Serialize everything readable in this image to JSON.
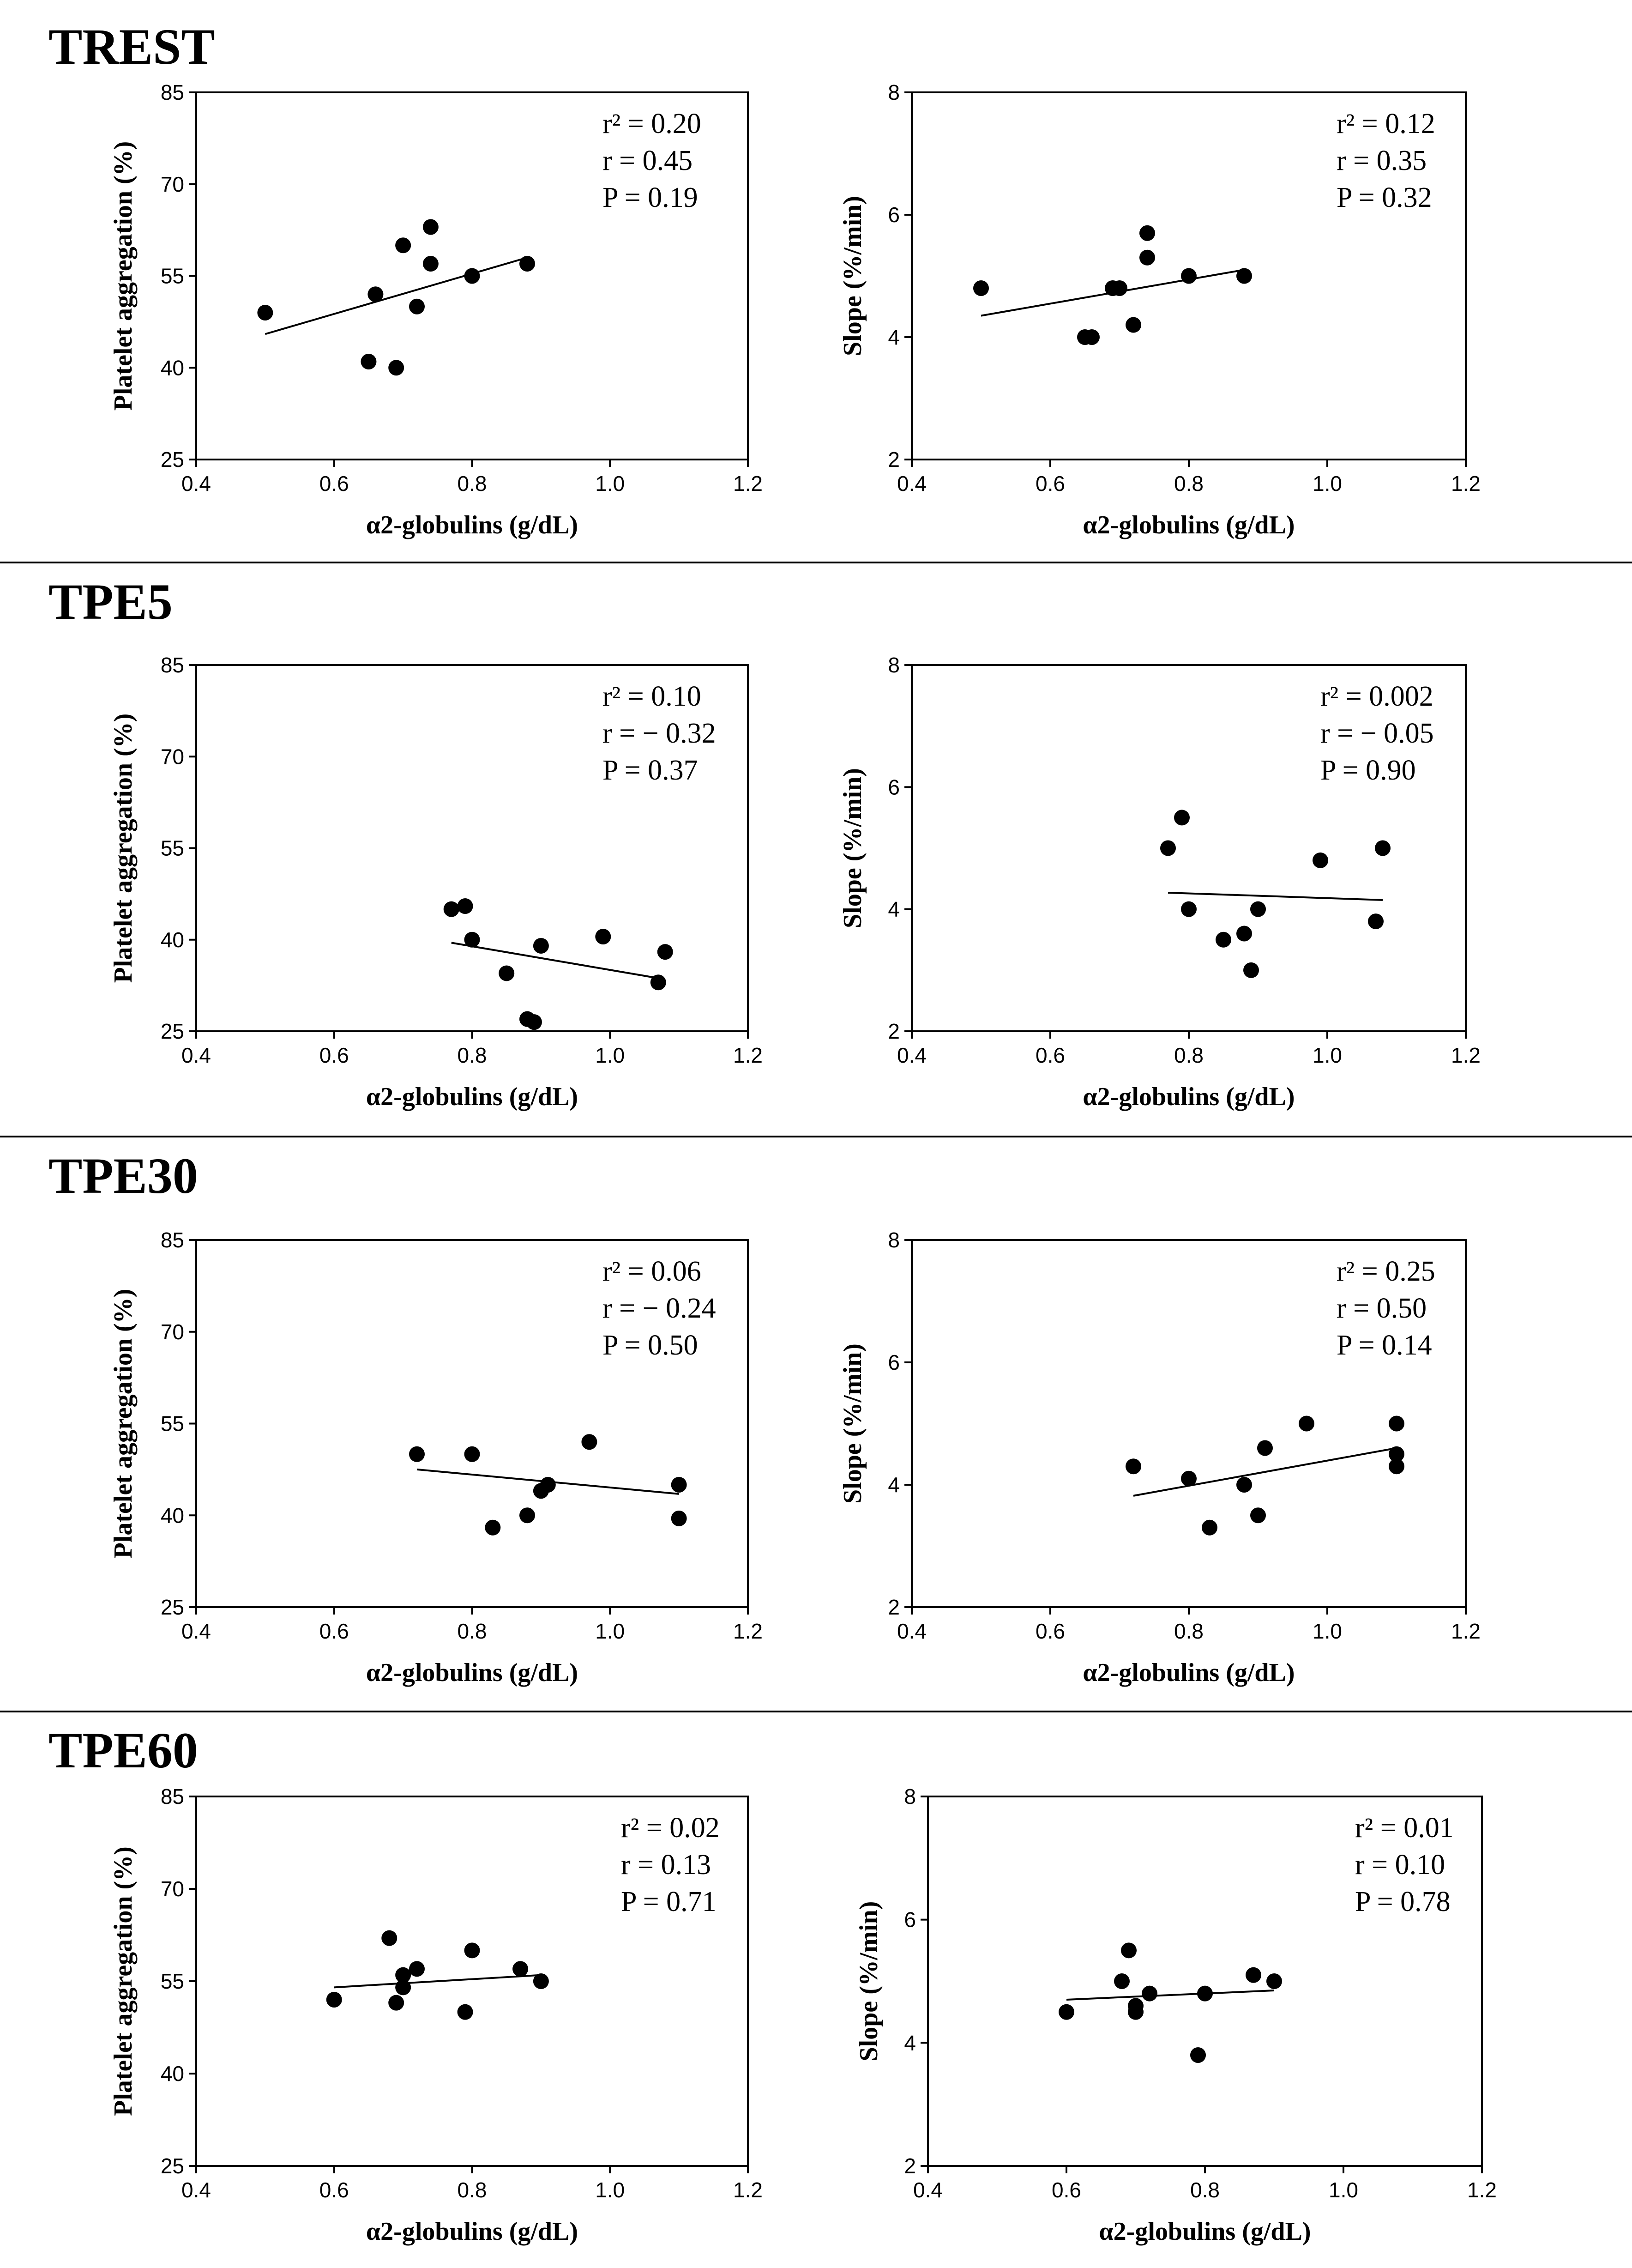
{
  "chart_data": [
    {
      "section": "TREST",
      "type": "scatter",
      "title": "TREST",
      "xlabel": "α2-globulins (g/dL)",
      "ylabel": "Platelet aggregation (%)",
      "xlim": [
        0.4,
        1.2
      ],
      "ylim": [
        25,
        85
      ],
      "x_ticks": [
        "0.4",
        "0.6",
        "0.8",
        "1.0",
        "1.2"
      ],
      "y_ticks": [
        "25",
        "40",
        "55",
        "70",
        "85"
      ],
      "stats": [
        "r² = 0.20",
        "r = 0.45",
        "P = 0.19"
      ],
      "points": [
        [
          0.5,
          49
        ],
        [
          0.65,
          41
        ],
        [
          0.66,
          52
        ],
        [
          0.69,
          40
        ],
        [
          0.7,
          60
        ],
        [
          0.72,
          50
        ],
        [
          0.74,
          63
        ],
        [
          0.74,
          57
        ],
        [
          0.8,
          55
        ],
        [
          0.88,
          57
        ]
      ],
      "fit": [
        [
          0.5,
          45.5
        ],
        [
          0.88,
          58
        ]
      ]
    },
    {
      "section": "TREST",
      "type": "scatter",
      "xlabel": "α2-globulins (g/dL)",
      "ylabel": "Slope (%/min)",
      "xlim": [
        0.4,
        1.2
      ],
      "ylim": [
        2,
        8
      ],
      "x_ticks": [
        "0.4",
        "0.6",
        "0.8",
        "1.0",
        "1.2"
      ],
      "y_ticks": [
        "2",
        "4",
        "6",
        "8"
      ],
      "stats": [
        "r² = 0.12",
        "r = 0.35",
        "P = 0.32"
      ],
      "points": [
        [
          0.5,
          4.8
        ],
        [
          0.65,
          4.0
        ],
        [
          0.66,
          4.0
        ],
        [
          0.69,
          4.8
        ],
        [
          0.7,
          4.8
        ],
        [
          0.72,
          4.2
        ],
        [
          0.74,
          5.7
        ],
        [
          0.74,
          5.3
        ],
        [
          0.8,
          5.0
        ],
        [
          0.88,
          5.0
        ]
      ],
      "fit": [
        [
          0.5,
          4.35
        ],
        [
          0.88,
          5.1
        ]
      ]
    },
    {
      "section": "TPE5",
      "type": "scatter",
      "title": "TPE5",
      "xlabel": "α2-globulins (g/dL)",
      "ylabel": "Platelet aggregation (%)",
      "xlim": [
        0.4,
        1.2
      ],
      "ylim": [
        25,
        85
      ],
      "x_ticks": [
        "0.4",
        "0.6",
        "0.8",
        "1.0",
        "1.2"
      ],
      "y_ticks": [
        "25",
        "40",
        "55",
        "70",
        "85"
      ],
      "stats": [
        "r² = 0.10",
        "r = − 0.32",
        "P = 0.37"
      ],
      "points": [
        [
          0.77,
          45
        ],
        [
          0.79,
          45.5
        ],
        [
          0.8,
          40
        ],
        [
          0.85,
          34.5
        ],
        [
          0.88,
          27
        ],
        [
          0.89,
          26.5
        ],
        [
          0.9,
          39
        ],
        [
          0.99,
          40.5
        ],
        [
          1.07,
          33
        ],
        [
          1.08,
          38
        ]
      ],
      "fit": [
        [
          0.77,
          39.5
        ],
        [
          1.08,
          33.5
        ]
      ]
    },
    {
      "section": "TPE5",
      "type": "scatter",
      "xlabel": "α2-globulins (g/dL)",
      "ylabel": "Slope (%/min)",
      "xlim": [
        0.4,
        1.2
      ],
      "ylim": [
        2,
        8
      ],
      "x_ticks": [
        "0.4",
        "0.6",
        "0.8",
        "1.0",
        "1.2"
      ],
      "y_ticks": [
        "2",
        "4",
        "6",
        "8"
      ],
      "stats": [
        "r² = 0.002",
        "r = − 0.05",
        "P = 0.90"
      ],
      "points": [
        [
          0.77,
          5.0
        ],
        [
          0.79,
          5.5
        ],
        [
          0.8,
          4.0
        ],
        [
          0.85,
          3.5
        ],
        [
          0.88,
          3.6
        ],
        [
          0.89,
          3.0
        ],
        [
          0.9,
          4.0
        ],
        [
          0.99,
          4.8
        ],
        [
          1.07,
          3.8
        ],
        [
          1.08,
          5.0
        ]
      ],
      "fit": [
        [
          0.77,
          4.27
        ],
        [
          1.08,
          4.15
        ]
      ]
    },
    {
      "section": "TPE30",
      "type": "scatter",
      "title": "TPE30",
      "xlabel": "α2-globulins (g/dL)",
      "ylabel": "Platelet aggregation (%)",
      "xlim": [
        0.4,
        1.2
      ],
      "ylim": [
        25,
        85
      ],
      "x_ticks": [
        "0.4",
        "0.6",
        "0.8",
        "1.0",
        "1.2"
      ],
      "y_ticks": [
        "25",
        "40",
        "55",
        "70",
        "85"
      ],
      "stats": [
        "r² = 0.06",
        "r = − 0.24",
        "P = 0.50"
      ],
      "points": [
        [
          0.72,
          50
        ],
        [
          0.8,
          50
        ],
        [
          0.83,
          38
        ],
        [
          0.88,
          40
        ],
        [
          0.9,
          44
        ],
        [
          0.91,
          45
        ],
        [
          0.97,
          52
        ],
        [
          1.1,
          45
        ],
        [
          1.1,
          39.5
        ]
      ],
      "fit": [
        [
          0.72,
          47.5
        ],
        [
          1.1,
          43.5
        ]
      ]
    },
    {
      "section": "TPE30",
      "type": "scatter",
      "xlabel": "α2-globulins (g/dL)",
      "ylabel": "Slope (%/min)",
      "xlim": [
        0.4,
        1.2
      ],
      "ylim": [
        2,
        8
      ],
      "x_ticks": [
        "0.4",
        "0.6",
        "0.8",
        "1.0",
        "1.2"
      ],
      "y_ticks": [
        "2",
        "4",
        "6",
        "8"
      ],
      "stats": [
        "r² = 0.25",
        "r = 0.50",
        "P = 0.14"
      ],
      "points": [
        [
          0.72,
          4.3
        ],
        [
          0.8,
          4.1
        ],
        [
          0.83,
          3.3
        ],
        [
          0.88,
          4.0
        ],
        [
          0.9,
          3.5
        ],
        [
          0.91,
          4.6
        ],
        [
          0.97,
          5.0
        ],
        [
          1.1,
          5.0
        ],
        [
          1.1,
          4.5
        ],
        [
          1.1,
          4.3
        ]
      ],
      "fit": [
        [
          0.72,
          3.82
        ],
        [
          1.1,
          4.6
        ]
      ]
    },
    {
      "section": "TPE60",
      "type": "scatter",
      "title": "TPE60",
      "xlabel": "α2-globulins (g/dL)",
      "ylabel": "Platelet aggregation (%)",
      "xlim": [
        0.4,
        1.2
      ],
      "ylim": [
        25,
        85
      ],
      "x_ticks": [
        "0.4",
        "0.6",
        "0.8",
        "1.0",
        "1.2"
      ],
      "y_ticks": [
        "25",
        "40",
        "55",
        "70",
        "85"
      ],
      "stats": [
        "r² = 0.02",
        "r = 0.13",
        "P = 0.71"
      ],
      "points": [
        [
          0.6,
          52
        ],
        [
          0.68,
          62
        ],
        [
          0.69,
          51.5
        ],
        [
          0.7,
          56
        ],
        [
          0.7,
          54
        ],
        [
          0.72,
          57
        ],
        [
          0.79,
          50
        ],
        [
          0.8,
          60
        ],
        [
          0.87,
          57
        ],
        [
          0.9,
          55
        ]
      ],
      "fit": [
        [
          0.6,
          54
        ],
        [
          0.9,
          56
        ]
      ]
    },
    {
      "section": "TPE60",
      "type": "scatter",
      "xlabel": "α2-globulins (g/dL)",
      "ylabel": "Slope (%/min)",
      "xlim": [
        0.4,
        1.2
      ],
      "ylim": [
        2,
        8
      ],
      "x_ticks": [
        "0.4",
        "0.6",
        "0.8",
        "1.0",
        "1.2"
      ],
      "y_ticks": [
        "2",
        "4",
        "6",
        "8"
      ],
      "stats": [
        "r² = 0.01",
        "r = 0.10",
        "P = 0.78"
      ],
      "points": [
        [
          0.6,
          4.5
        ],
        [
          0.68,
          5.0
        ],
        [
          0.69,
          5.5
        ],
        [
          0.7,
          4.6
        ],
        [
          0.7,
          4.5
        ],
        [
          0.72,
          4.8
        ],
        [
          0.79,
          3.8
        ],
        [
          0.8,
          4.8
        ],
        [
          0.87,
          5.1
        ],
        [
          0.9,
          5.0
        ]
      ],
      "fit": [
        [
          0.6,
          4.7
        ],
        [
          0.9,
          4.85
        ]
      ]
    }
  ]
}
